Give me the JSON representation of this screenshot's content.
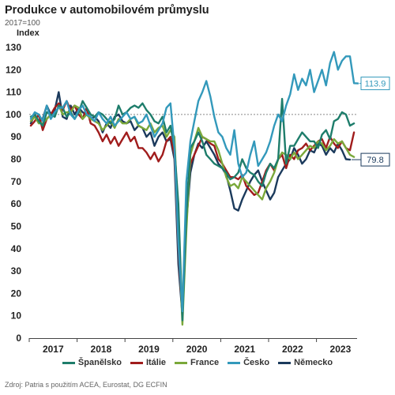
{
  "header": {
    "title": "Produkce v automobilovém průmyslu",
    "subtitle": "2017=100",
    "unit": "Index"
  },
  "source": "Zdroj: Patria s použitím ACEA, Eurostat, DG ECFIN",
  "colors": {
    "spanelsko": "#1e7d6b",
    "italie": "#a01c1c",
    "france": "#7aa83a",
    "cesko": "#3399bb",
    "nemecko": "#1b3a5c"
  },
  "chart_data": {
    "type": "line",
    "title": "Produkce v automobilovém průmyslu",
    "subtitle": "2017=100",
    "ylabel": "Index",
    "xlabel": "",
    "ylim": [
      0,
      130
    ],
    "yticks": [
      "0",
      "10",
      "20",
      "30",
      "40",
      "50",
      "60",
      "70",
      "80",
      "90",
      "100",
      "110",
      "120",
      "130"
    ],
    "year_labels": [
      "2017",
      "2018",
      "2019",
      "2020",
      "2021",
      "2022",
      "2023"
    ],
    "x_start": "2017-01",
    "reference_line": 100,
    "grid": false,
    "legend_position": "bottom",
    "end_labels": [
      {
        "series": "Česko",
        "value": "113.9"
      },
      {
        "series": "Německo",
        "value": "79.8"
      }
    ],
    "series": [
      {
        "name": "Španělsko",
        "color": "#1e7d6b",
        "values": [
          99,
          100,
          97,
          95,
          101,
          100,
          99,
          104,
          103,
          99,
          101,
          98,
          101,
          106,
          103,
          100,
          99,
          101,
          100,
          98,
          96,
          98,
          104,
          100,
          101,
          103,
          104,
          103,
          105,
          102,
          100,
          97,
          96,
          99,
          92,
          95,
          85,
          60,
          8,
          55,
          85,
          88,
          92,
          88,
          82,
          80,
          78,
          77,
          76,
          74,
          71,
          72,
          74,
          80,
          76,
          74,
          73,
          70,
          68,
          74,
          78,
          76,
          80,
          107,
          78,
          86,
          86,
          89,
          92,
          90,
          88,
          88,
          85,
          91,
          93,
          89,
          97,
          98,
          101,
          100,
          95,
          96
        ]
      },
      {
        "name": "Itálie",
        "color": "#a01c1c",
        "values": [
          95,
          97,
          100,
          93,
          98,
          100,
          103,
          105,
          102,
          106,
          102,
          104,
          100,
          98,
          103,
          96,
          95,
          92,
          88,
          91,
          87,
          90,
          86,
          89,
          92,
          88,
          90,
          85,
          85,
          83,
          80,
          83,
          79,
          82,
          88,
          90,
          82,
          40,
          10,
          62,
          78,
          82,
          86,
          90,
          89,
          87,
          86,
          80,
          78,
          75,
          72,
          72,
          71,
          73,
          68,
          66,
          64,
          65,
          70,
          75,
          78,
          75,
          80,
          82,
          76,
          82,
          80,
          84,
          85,
          87,
          84,
          86,
          88,
          89,
          85,
          90,
          87,
          85,
          88,
          85,
          84,
          92
        ]
      },
      {
        "name": "France",
        "color": "#7aa83a",
        "values": [
          97,
          99,
          96,
          96,
          98,
          100,
          99,
          104,
          100,
          101,
          101,
          104,
          103,
          98,
          100,
          98,
          97,
          96,
          93,
          95,
          97,
          94,
          98,
          96,
          96,
          98,
          99,
          95,
          94,
          93,
          96,
          92,
          94,
          95,
          90,
          93,
          90,
          50,
          6,
          48,
          82,
          88,
          94,
          90,
          89,
          88,
          88,
          84,
          78,
          72,
          68,
          69,
          67,
          72,
          70,
          68,
          66,
          64,
          62,
          67,
          70,
          74,
          80,
          83,
          82,
          80,
          83,
          80,
          82,
          84,
          86,
          85,
          88,
          87,
          84,
          86,
          89,
          87,
          88,
          85,
          82,
          81
        ]
      },
      {
        "name": "Česko",
        "color": "#3399bb",
        "values": [
          98,
          101,
          100,
          97,
          104,
          98,
          101,
          103,
          103,
          106,
          100,
          98,
          102,
          104,
          100,
          99,
          97,
          101,
          98,
          96,
          99,
          95,
          97,
          99,
          101,
          98,
          99,
          96,
          97,
          100,
          95,
          90,
          93,
          96,
          103,
          105,
          85,
          42,
          12,
          70,
          88,
          97,
          106,
          110,
          115,
          108,
          99,
          92,
          90,
          85,
          82,
          93,
          78,
          72,
          74,
          82,
          88,
          77,
          80,
          83,
          88,
          95,
          100,
          97,
          104,
          109,
          118,
          111,
          116,
          113,
          120,
          110,
          115,
          120,
          113,
          123,
          128,
          120,
          124,
          126,
          126,
          114,
          113.9
        ]
      },
      {
        "name": "Německo",
        "color": "#1b3a5c",
        "values": [
          96,
          100,
          97,
          98,
          104,
          100,
          102,
          110,
          99,
          98,
          104,
          100,
          103,
          101,
          100,
          98,
          99,
          97,
          92,
          96,
          94,
          99,
          100,
          97,
          96,
          97,
          93,
          95,
          94,
          90,
          92,
          86,
          90,
          92,
          88,
          89,
          80,
          33,
          10,
          52,
          74,
          82,
          87,
          85,
          88,
          85,
          82,
          78,
          76,
          73,
          66,
          58,
          57,
          62,
          66,
          70,
          73,
          75,
          70,
          66,
          62,
          65,
          72,
          75,
          78,
          80,
          85,
          82,
          78,
          80,
          84,
          83,
          87,
          86,
          82,
          85,
          83,
          87,
          84,
          80,
          79.8
        ]
      }
    ]
  }
}
